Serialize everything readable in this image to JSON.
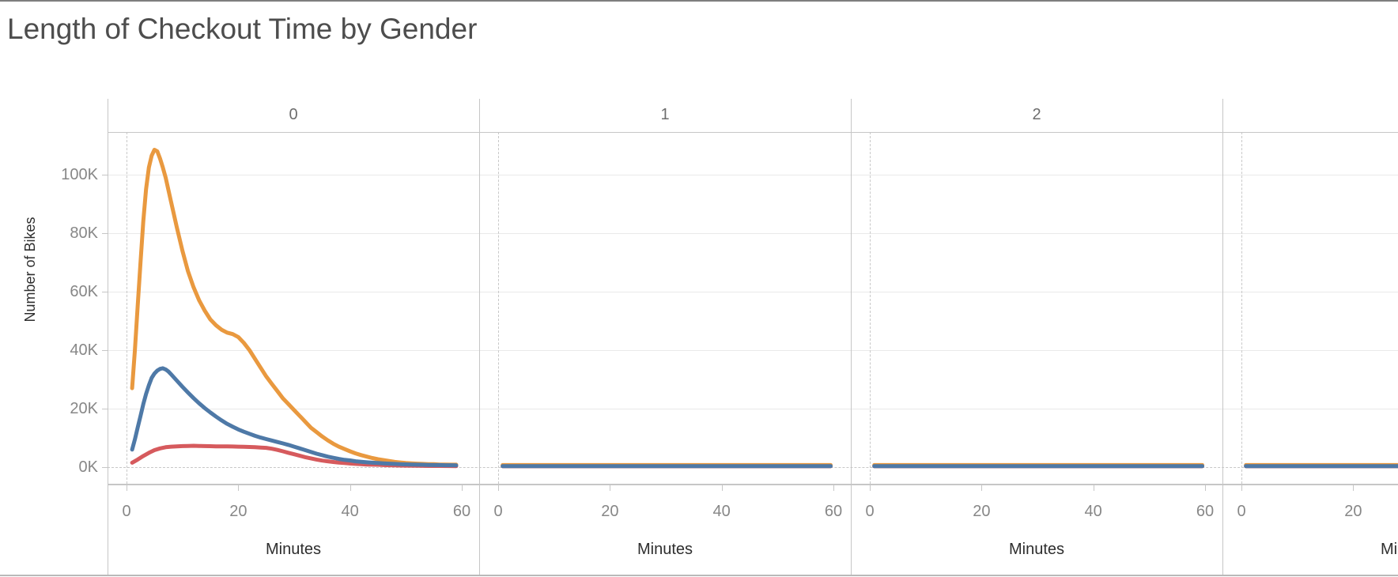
{
  "chart_data": {
    "type": "line",
    "title": "Length of Checkout Time by Gender",
    "ylabel": "Number of Bikes",
    "xlabel": "Minutes",
    "legend": "none (no legend visible)",
    "y_axis": {
      "tick_labels": [
        "0K",
        "20K",
        "40K",
        "60K",
        "80K",
        "100K"
      ],
      "tick_values_k": [
        0,
        20,
        40,
        60,
        80,
        100
      ],
      "ylim_k": [
        -5.5,
        115
      ],
      "gridlines": true,
      "zero_reference_line": "dashed"
    },
    "x_axis": {
      "tick_labels": [
        "0",
        "20",
        "40",
        "60"
      ],
      "tick_values": [
        0,
        20,
        40,
        60
      ],
      "xlim": [
        -3.4,
        63.2
      ],
      "zero_reference_line": "dashed"
    },
    "facets": [
      {
        "header": "0",
        "partial": false,
        "series": [
          {
            "name": "red",
            "color": "#D65A5D",
            "points": [
              [
                1,
                1.5
              ],
              [
                2,
                2.6
              ],
              [
                3,
                3.8
              ],
              [
                4,
                4.9
              ],
              [
                5,
                5.8
              ],
              [
                6,
                6.4
              ],
              [
                7,
                6.8
              ],
              [
                8,
                7.0
              ],
              [
                9,
                7.1
              ],
              [
                10,
                7.2
              ],
              [
                11,
                7.25
              ],
              [
                12,
                7.3
              ],
              [
                13,
                7.25
              ],
              [
                14,
                7.2
              ],
              [
                15,
                7.15
              ],
              [
                16,
                7.1
              ],
              [
                17,
                7.1
              ],
              [
                18,
                7.1
              ],
              [
                19,
                7.05
              ],
              [
                20,
                7.0
              ],
              [
                21,
                6.95
              ],
              [
                22,
                6.9
              ],
              [
                23,
                6.8
              ],
              [
                24,
                6.7
              ],
              [
                25,
                6.6
              ],
              [
                26,
                6.3
              ],
              [
                27,
                5.9
              ],
              [
                28,
                5.4
              ],
              [
                29,
                4.9
              ],
              [
                30,
                4.4
              ],
              [
                31,
                3.9
              ],
              [
                32,
                3.4
              ],
              [
                33,
                3.0
              ],
              [
                34,
                2.6
              ],
              [
                35,
                2.25
              ],
              [
                36,
                2.0
              ],
              [
                37,
                1.75
              ],
              [
                38,
                1.55
              ],
              [
                39,
                1.4
              ],
              [
                40,
                1.25
              ],
              [
                41,
                1.1
              ],
              [
                42,
                1.0
              ],
              [
                43,
                0.9
              ],
              [
                44,
                0.85
              ],
              [
                45,
                0.8
              ],
              [
                46,
                0.7
              ],
              [
                47,
                0.65
              ],
              [
                48,
                0.6
              ],
              [
                49,
                0.55
              ],
              [
                50,
                0.5
              ],
              [
                52,
                0.45
              ],
              [
                54,
                0.4
              ],
              [
                56,
                0.4
              ],
              [
                58,
                0.38
              ],
              [
                59,
                0.35
              ]
            ]
          },
          {
            "name": "orange",
            "color": "#E9993F",
            "points": [
              [
                1,
                27
              ],
              [
                1.5,
                40
              ],
              [
                2,
                55
              ],
              [
                2.5,
                70
              ],
              [
                3,
                84
              ],
              [
                3.5,
                95
              ],
              [
                4,
                102.5
              ],
              [
                4.5,
                106.5
              ],
              [
                5,
                108.5
              ],
              [
                5.5,
                108
              ],
              [
                6,
                105.5
              ],
              [
                6.5,
                102.5
              ],
              [
                7,
                99
              ],
              [
                8,
                90.5
              ],
              [
                9,
                82
              ],
              [
                10,
                74
              ],
              [
                11,
                67
              ],
              [
                12,
                61.5
              ],
              [
                13,
                57
              ],
              [
                14,
                53.5
              ],
              [
                15,
                50.5
              ],
              [
                16,
                48.5
              ],
              [
                17,
                47
              ],
              [
                18,
                46
              ],
              [
                19,
                45.5
              ],
              [
                20,
                44.5
              ],
              [
                21,
                42.5
              ],
              [
                22,
                40
              ],
              [
                23,
                37
              ],
              [
                24,
                34
              ],
              [
                25,
                31
              ],
              [
                26,
                28.5
              ],
              [
                27,
                26
              ],
              [
                28,
                23.5
              ],
              [
                29,
                21.5
              ],
              [
                30,
                19.5
              ],
              [
                31,
                17.5
              ],
              [
                32,
                15.5
              ],
              [
                33,
                13.5
              ],
              [
                34,
                12
              ],
              [
                35,
                10.5
              ],
              [
                36,
                9.2
              ],
              [
                37,
                8
              ],
              [
                38,
                7
              ],
              [
                39,
                6.2
              ],
              [
                40,
                5.4
              ],
              [
                41,
                4.7
              ],
              [
                42,
                4.1
              ],
              [
                43,
                3.6
              ],
              [
                44,
                3.1
              ],
              [
                45,
                2.7
              ],
              [
                46,
                2.4
              ],
              [
                47,
                2.1
              ],
              [
                48,
                1.8
              ],
              [
                49,
                1.6
              ],
              [
                50,
                1.4
              ],
              [
                51,
                1.3
              ],
              [
                52,
                1.2
              ],
              [
                53,
                1.1
              ],
              [
                54,
                1.0
              ],
              [
                55,
                1.0
              ],
              [
                56,
                0.9
              ],
              [
                57,
                0.9
              ],
              [
                58,
                0.85
              ],
              [
                59,
                0.85
              ]
            ]
          },
          {
            "name": "blue",
            "color": "#4E79A7",
            "points": [
              [
                1,
                6
              ],
              [
                1.5,
                9.5
              ],
              [
                2,
                13.5
              ],
              [
                2.5,
                17.5
              ],
              [
                3,
                21.5
              ],
              [
                3.5,
                25
              ],
              [
                4,
                28
              ],
              [
                4.5,
                30.5
              ],
              [
                5,
                32
              ],
              [
                5.5,
                33
              ],
              [
                6,
                33.6
              ],
              [
                6.5,
                33.8
              ],
              [
                7,
                33.4
              ],
              [
                7.5,
                32.7
              ],
              [
                8,
                31.7
              ],
              [
                9,
                29.6
              ],
              [
                10,
                27.5
              ],
              [
                11,
                25.5
              ],
              [
                12,
                23.6
              ],
              [
                13,
                21.8
              ],
              [
                14,
                20.2
              ],
              [
                15,
                18.7
              ],
              [
                16,
                17.3
              ],
              [
                17,
                16
              ],
              [
                18,
                14.8
              ],
              [
                19,
                13.8
              ],
              [
                20,
                12.9
              ],
              [
                21,
                12.1
              ],
              [
                22,
                11.4
              ],
              [
                23,
                10.7
              ],
              [
                24,
                10.1
              ],
              [
                25,
                9.6
              ],
              [
                26,
                9.1
              ],
              [
                27,
                8.6
              ],
              [
                28,
                8.1
              ],
              [
                29,
                7.6
              ],
              [
                30,
                7.0
              ],
              [
                31,
                6.4
              ],
              [
                32,
                5.8
              ],
              [
                33,
                5.2
              ],
              [
                34,
                4.6
              ],
              [
                35,
                4.1
              ],
              [
                36,
                3.6
              ],
              [
                37,
                3.2
              ],
              [
                38,
                2.8
              ],
              [
                39,
                2.5
              ],
              [
                40,
                2.3
              ],
              [
                41,
                2.0
              ],
              [
                42,
                1.8
              ],
              [
                43,
                1.65
              ],
              [
                44,
                1.5
              ],
              [
                45,
                1.4
              ],
              [
                46,
                1.3
              ],
              [
                47,
                1.2
              ],
              [
                48,
                1.1
              ],
              [
                49,
                1.0
              ],
              [
                50,
                0.95
              ],
              [
                51,
                0.9
              ],
              [
                52,
                0.85
              ],
              [
                53,
                0.8
              ],
              [
                54,
                0.75
              ],
              [
                55,
                0.7
              ],
              [
                56,
                0.7
              ],
              [
                57,
                0.65
              ],
              [
                58,
                0.65
              ],
              [
                59,
                0.6
              ]
            ]
          }
        ]
      },
      {
        "header": "1",
        "partial": false,
        "series": [
          {
            "name": "red",
            "color": "#D65A5D",
            "points": [
              [
                0.8,
                0.3
              ],
              [
                59.5,
                0.3
              ]
            ]
          },
          {
            "name": "orange",
            "color": "#E9993F",
            "points": [
              [
                0.8,
                0.7
              ],
              [
                59.5,
                0.7
              ]
            ]
          },
          {
            "name": "blue",
            "color": "#4E79A7",
            "points": [
              [
                0.8,
                0.35
              ],
              [
                59.5,
                0.35
              ]
            ]
          }
        ]
      },
      {
        "header": "2",
        "partial": false,
        "series": [
          {
            "name": "red",
            "color": "#D65A5D",
            "points": [
              [
                0.8,
                0.3
              ],
              [
                59.5,
                0.3
              ]
            ]
          },
          {
            "name": "orange",
            "color": "#E9993F",
            "points": [
              [
                0.8,
                0.7
              ],
              [
                59.5,
                0.7
              ]
            ]
          },
          {
            "name": "blue",
            "color": "#4E79A7",
            "points": [
              [
                0.8,
                0.35
              ],
              [
                59.5,
                0.35
              ]
            ]
          }
        ]
      },
      {
        "header": "",
        "partial": true,
        "series": [
          {
            "name": "red",
            "color": "#D65A5D",
            "points": [
              [
                0.8,
                0.3
              ],
              [
                70,
                0.3
              ]
            ]
          },
          {
            "name": "orange",
            "color": "#E9993F",
            "points": [
              [
                0.8,
                0.7
              ],
              [
                70,
                0.7
              ]
            ]
          },
          {
            "name": "blue",
            "color": "#4E79A7",
            "points": [
              [
                0.8,
                0.35
              ],
              [
                70,
                0.35
              ]
            ]
          }
        ]
      }
    ],
    "colors": {
      "orange": "#E9993F",
      "blue": "#4E79A7",
      "red": "#D65A5D"
    },
    "units": {
      "y": "thousands of bikes",
      "x": "minutes"
    }
  }
}
